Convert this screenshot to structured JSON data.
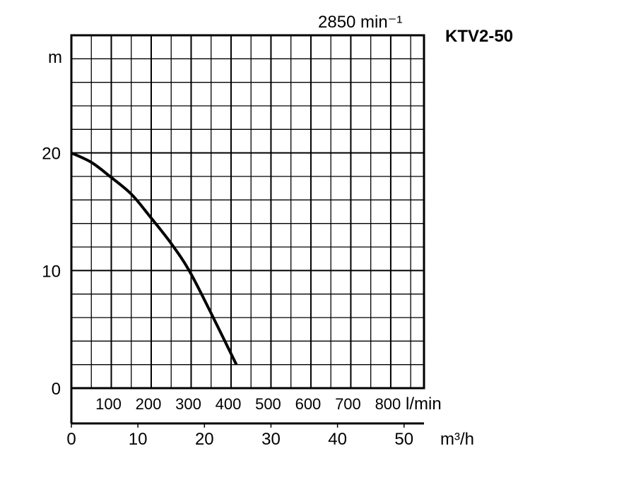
{
  "chart_data": {
    "type": "line",
    "title": "KTV2-50",
    "speed_label": "2850 min⁻¹",
    "ylabel": "m",
    "xlabel": "m³/h",
    "x2label": "l/min",
    "xlim": [
      0,
      53
    ],
    "ylim": [
      0,
      30
    ],
    "grid": true,
    "y_ticks": [
      0,
      10,
      20
    ],
    "x_ticks": [
      0,
      10,
      20,
      30,
      40,
      50
    ],
    "x2_ticks": [
      100,
      200,
      300,
      400,
      500,
      600,
      700,
      800
    ],
    "series": [
      {
        "name": "KTV2-50 @ 2850 min⁻¹",
        "x": [
          0,
          3,
          5.8,
          9,
          11.8,
          15,
          17.7,
          20.8,
          24.8
        ],
        "y": [
          20,
          19.2,
          18,
          16.5,
          14.6,
          12.3,
          10,
          6.6,
          2
        ]
      }
    ]
  }
}
